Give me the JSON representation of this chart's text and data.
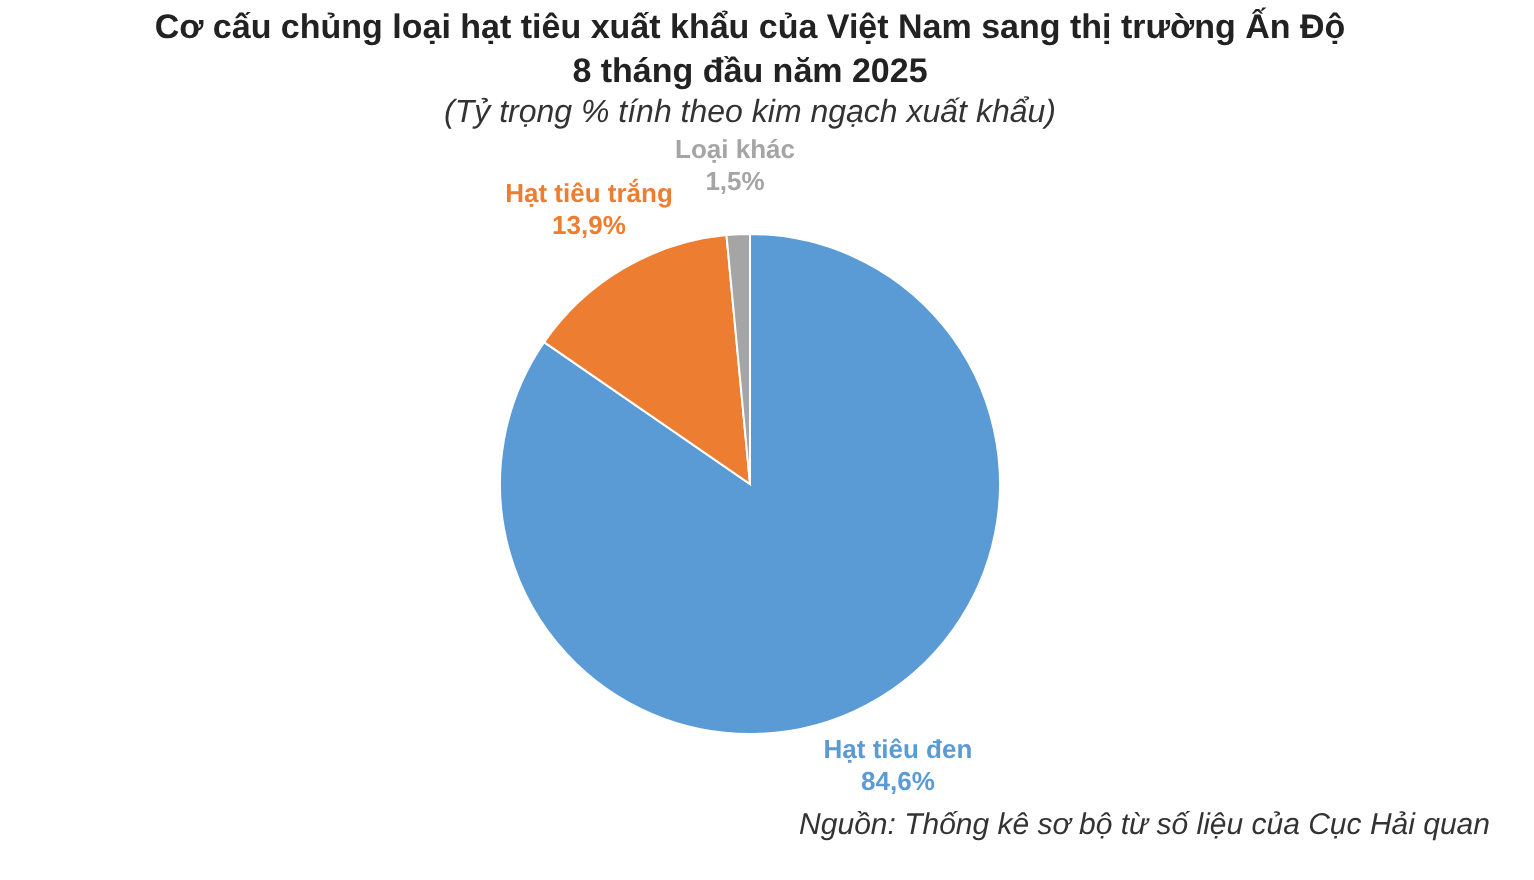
{
  "chart_data": {
    "type": "pie",
    "title": "Cơ cấu chủng loại hạt tiêu xuất khẩu của Việt Nam sang thị trường Ấn Độ\n8 tháng đầu năm 2025",
    "subtitle": "(Tỷ trọng % tính theo kim ngạch xuất khẩu)",
    "categories": [
      "Hạt tiêu đen",
      "Hạt tiêu trắng",
      "Loại khác"
    ],
    "values": [
      84.6,
      13.9,
      1.5
    ],
    "value_labels": [
      "84,6%",
      "13,9%",
      "1,5%"
    ],
    "colors": [
      "#5b9bd5",
      "#ed7d31",
      "#a5a5a5"
    ],
    "annotations": [
      "Nguồn: Thống kê sơ bộ từ số liệu của Cục Hải quan"
    ],
    "legend": false
  }
}
